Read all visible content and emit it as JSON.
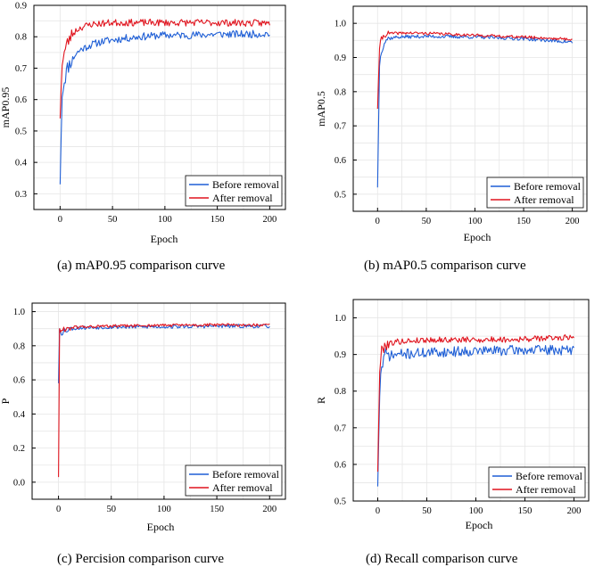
{
  "chart_data": [
    {
      "type": "line",
      "caption": "(a)  mAP0.95 comparison curve",
      "xlabel": "Epoch",
      "ylabel": "mAP0.95",
      "xlim": [
        -25,
        215
      ],
      "ylim": [
        0.25,
        0.9
      ],
      "xticks": [
        0,
        50,
        100,
        150,
        200
      ],
      "yticks": [
        0.3,
        0.4,
        0.5,
        0.6,
        0.7,
        0.8,
        0.9
      ],
      "ytick_labels": [
        "0.3",
        "0.4",
        "0.5",
        "0.6",
        "0.7",
        "0.8",
        "0.9"
      ],
      "grid": true,
      "legend_position": "bottom-right",
      "series": [
        {
          "name": "Before removal",
          "color": "#1f5fd6",
          "start": 0.33,
          "points": [
            [
              0,
              0.33
            ],
            [
              2,
              0.62
            ],
            [
              4,
              0.66
            ],
            [
              7,
              0.7
            ],
            [
              10,
              0.72
            ],
            [
              15,
              0.745
            ],
            [
              20,
              0.76
            ],
            [
              30,
              0.775
            ],
            [
              40,
              0.785
            ],
            [
              50,
              0.79
            ],
            [
              75,
              0.8
            ],
            [
              100,
              0.805
            ],
            [
              125,
              0.805
            ],
            [
              150,
              0.808
            ],
            [
              175,
              0.808
            ],
            [
              200,
              0.81
            ]
          ],
          "noise": 0.012,
          "seed": 11
        },
        {
          "name": "After removal",
          "color": "#e0141e",
          "start": 0.54,
          "points": [
            [
              0,
              0.54
            ],
            [
              2,
              0.72
            ],
            [
              4,
              0.75
            ],
            [
              7,
              0.78
            ],
            [
              10,
              0.8
            ],
            [
              15,
              0.82
            ],
            [
              20,
              0.83
            ],
            [
              30,
              0.84
            ],
            [
              50,
              0.845
            ],
            [
              100,
              0.845
            ],
            [
              150,
              0.845
            ],
            [
              200,
              0.843
            ]
          ],
          "noise": 0.011,
          "seed": 23
        }
      ]
    },
    {
      "type": "line",
      "caption": "(b) mAP0.5 comparison curve",
      "xlabel": "Epoch",
      "ylabel": "mAP0.5",
      "xlim": [
        -25,
        215
      ],
      "ylim": [
        0.45,
        1.05
      ],
      "xticks": [
        0,
        50,
        100,
        150,
        200
      ],
      "yticks": [
        0.5,
        0.6,
        0.7,
        0.8,
        0.9,
        1.0
      ],
      "ytick_labels": [
        "0.5",
        "0.6",
        "0.7",
        "0.8",
        "0.9",
        "1.0"
      ],
      "grid": true,
      "legend_position": "bottom-right",
      "series": [
        {
          "name": "Before removal",
          "color": "#1f5fd6",
          "start": 0.52,
          "points": [
            [
              0,
              0.52
            ],
            [
              2,
              0.88
            ],
            [
              4,
              0.92
            ],
            [
              7,
              0.945
            ],
            [
              10,
              0.955
            ],
            [
              20,
              0.96
            ],
            [
              50,
              0.962
            ],
            [
              100,
              0.96
            ],
            [
              150,
              0.955
            ],
            [
              200,
              0.945
            ]
          ],
          "noise": 0.005,
          "seed": 37
        },
        {
          "name": "After removal",
          "color": "#e0141e",
          "start": 0.75,
          "points": [
            [
              0,
              0.75
            ],
            [
              2,
              0.93
            ],
            [
              4,
              0.955
            ],
            [
              7,
              0.965
            ],
            [
              10,
              0.97
            ],
            [
              30,
              0.972
            ],
            [
              60,
              0.97
            ],
            [
              100,
              0.965
            ],
            [
              150,
              0.96
            ],
            [
              200,
              0.953
            ]
          ],
          "noise": 0.004,
          "seed": 41
        }
      ]
    },
    {
      "type": "line",
      "caption": "(c) Percision comparison curve",
      "xlabel": "Epoch",
      "ylabel": "P",
      "xlim": [
        -25,
        215
      ],
      "ylim": [
        -0.1,
        1.05
      ],
      "xticks": [
        0,
        50,
        100,
        150,
        200
      ],
      "yticks": [
        0.0,
        0.2,
        0.4,
        0.6,
        0.8,
        1.0
      ],
      "ytick_labels": [
        "0.0",
        "0.2",
        "0.4",
        "0.6",
        "0.8",
        "1.0"
      ],
      "grid": true,
      "legend_position": "bottom-right",
      "series": [
        {
          "name": "Before removal",
          "color": "#1f5fd6",
          "start": 0.58,
          "points": [
            [
              0,
              0.58
            ],
            [
              1,
              0.9
            ],
            [
              3,
              0.88
            ],
            [
              6,
              0.89
            ],
            [
              10,
              0.9
            ],
            [
              20,
              0.905
            ],
            [
              50,
              0.91
            ],
            [
              100,
              0.912
            ],
            [
              150,
              0.915
            ],
            [
              200,
              0.915
            ]
          ],
          "noise": 0.011,
          "seed": 53
        },
        {
          "name": "After removal",
          "color": "#e0141e",
          "start": 0.03,
          "points": [
            [
              0,
              0.03
            ],
            [
              1,
              0.9
            ],
            [
              3,
              0.88
            ],
            [
              6,
              0.9
            ],
            [
              10,
              0.905
            ],
            [
              20,
              0.91
            ],
            [
              50,
              0.915
            ],
            [
              100,
              0.92
            ],
            [
              150,
              0.922
            ],
            [
              200,
              0.92
            ]
          ],
          "noise": 0.009,
          "seed": 61
        }
      ]
    },
    {
      "type": "line",
      "caption": "(d) Recall comparison curve",
      "xlabel": "Epoch",
      "ylabel": "R",
      "xlim": [
        -25,
        215
      ],
      "ylim": [
        0.5,
        1.05
      ],
      "xticks": [
        0,
        50,
        100,
        150,
        200
      ],
      "yticks": [
        0.5,
        0.6,
        0.7,
        0.8,
        0.9,
        1.0
      ],
      "ytick_labels": [
        "0.5",
        "0.6",
        "0.7",
        "0.8",
        "0.9",
        "1.0"
      ],
      "grid": true,
      "legend_position": "bottom-right",
      "series": [
        {
          "name": "Before removal",
          "color": "#1f5fd6",
          "start": 0.54,
          "points": [
            [
              0,
              0.54
            ],
            [
              2,
              0.8
            ],
            [
              4,
              0.87
            ],
            [
              7,
              0.89
            ],
            [
              10,
              0.895
            ],
            [
              20,
              0.9
            ],
            [
              50,
              0.905
            ],
            [
              100,
              0.91
            ],
            [
              150,
              0.912
            ],
            [
              200,
              0.912
            ]
          ],
          "noise": 0.014,
          "seed": 71
        },
        {
          "name": "After removal",
          "color": "#e0141e",
          "start": 0.58,
          "points": [
            [
              0,
              0.58
            ],
            [
              2,
              0.86
            ],
            [
              4,
              0.91
            ],
            [
              7,
              0.925
            ],
            [
              10,
              0.93
            ],
            [
              20,
              0.935
            ],
            [
              50,
              0.94
            ],
            [
              100,
              0.94
            ],
            [
              150,
              0.942
            ],
            [
              200,
              0.948
            ]
          ],
          "noise": 0.008,
          "seed": 79
        }
      ]
    }
  ]
}
